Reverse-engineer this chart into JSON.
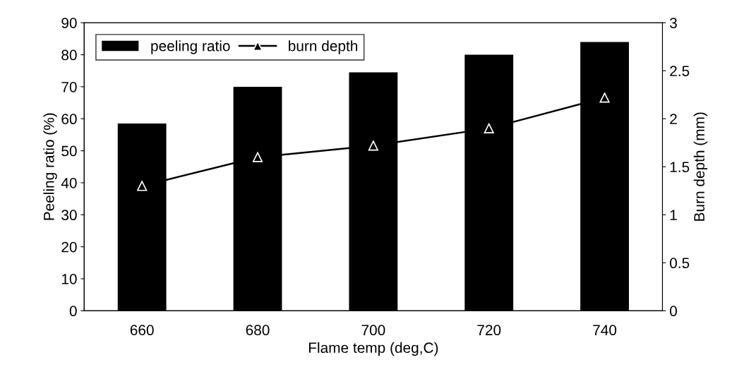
{
  "chart_data": {
    "type": "bar",
    "xlabel": "Flame temp (deg,C)",
    "ylabel": "Peeling ratio (%)",
    "y2label": "Burn depth (mm)",
    "categories": [
      "660",
      "680",
      "700",
      "720",
      "740"
    ],
    "series": [
      {
        "name": "peeling ratio",
        "color": "#000000",
        "values": [
          58.5,
          70,
          74.5,
          80,
          84
        ]
      },
      {
        "name": "burn depth",
        "type": "line",
        "axis": "y2",
        "color": "#000000",
        "marker": "triangle",
        "values": [
          1.3,
          1.6,
          1.72,
          1.9,
          2.22
        ]
      }
    ],
    "ylim": [
      0,
      90
    ],
    "yticks": [
      0,
      10,
      20,
      30,
      40,
      50,
      60,
      70,
      80,
      90
    ],
    "y2lim": [
      0,
      3
    ],
    "y2ticks": [
      0,
      0.5,
      1,
      1.5,
      2,
      2.5,
      3
    ],
    "legend": "top left",
    "grid": false
  }
}
